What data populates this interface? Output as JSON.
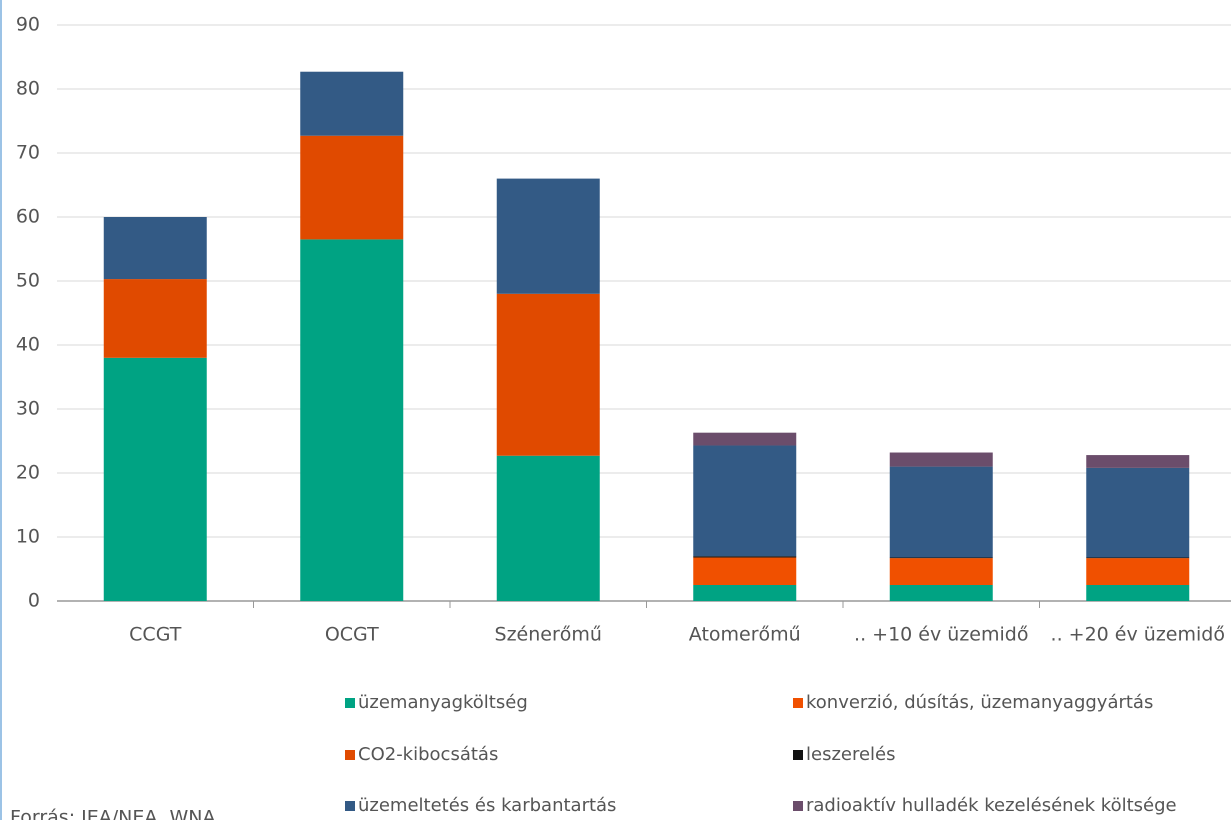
{
  "chart_data": {
    "type": "stacked_bar",
    "categories": [
      "CCGT",
      "OCGT",
      "Szénerőmű",
      "Atomerőmű",
      ".. +10 év üzemidő",
      ".. +20 év üzemidő"
    ],
    "series": [
      {
        "name": "üzemanyagköltség",
        "color": "#00a383",
        "values": [
          38,
          56.5,
          22.7,
          2.5,
          2.5,
          2.5
        ]
      },
      {
        "name": "CO2-kibocsátás",
        "color": "#e04a00",
        "values": [
          12.3,
          16.2,
          25.3,
          0,
          0,
          0
        ]
      },
      {
        "name": "konverzió, dúsítás, üzemanyaggyártás",
        "color": "#f05000",
        "values": [
          0,
          0,
          0,
          4.3,
          4.2,
          4.2
        ]
      },
      {
        "name": "leszerelés",
        "color": "#111111",
        "values": [
          0,
          0,
          0,
          0.2,
          0.1,
          0.1
        ]
      },
      {
        "name": "üzemeltetés és karbantartás",
        "color": "#335a85",
        "values": [
          9.7,
          10,
          18,
          17.3,
          14.2,
          14
        ]
      },
      {
        "name": "radioaktív hulladék kezelésének költsége",
        "color": "#6b4d6b",
        "values": [
          0,
          0,
          0,
          2,
          2.2,
          2
        ]
      }
    ],
    "ylim": [
      0,
      90
    ],
    "yticks": [
      0,
      10,
      20,
      30,
      40,
      50,
      60,
      70,
      80,
      90
    ],
    "grid": true,
    "source": "Forrás: IEA/NEA, WNA"
  }
}
